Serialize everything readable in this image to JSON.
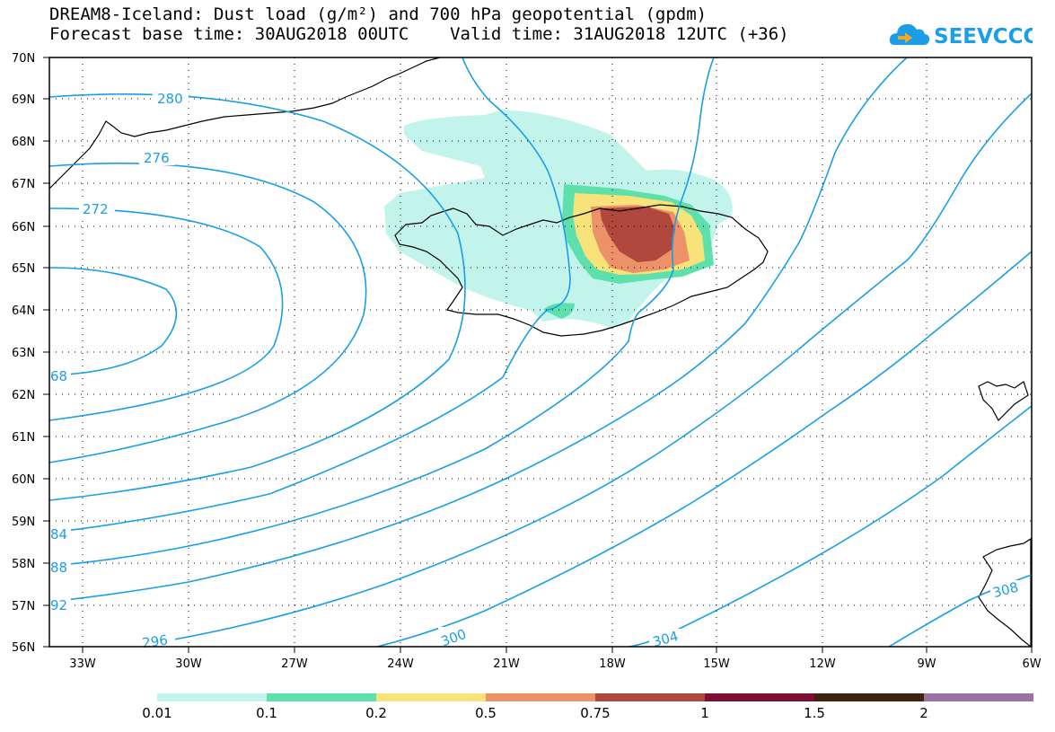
{
  "title": {
    "line1": "DREAM8-Iceland: Dust load (g/m²) and 700 hPa geopotential (gpdm)",
    "line2": "Forecast base time: 30AUG2018 00UTC    Valid time: 31AUG2018 12UTC (+36)"
  },
  "logo": {
    "text": "SEEVCCC",
    "icon": "cloud-logo-icon",
    "color": "#1a9ee8"
  },
  "map": {
    "lat_labels": [
      "70N",
      "69N",
      "68N",
      "67N",
      "66N",
      "65N",
      "64N",
      "63N",
      "62N",
      "61N",
      "60N",
      "59N",
      "58N",
      "57N",
      "56N"
    ],
    "lon_labels": [
      "33W",
      "30W",
      "27W",
      "24W",
      "21W",
      "18W",
      "15W",
      "12W",
      "9W",
      "6W"
    ],
    "contour_color": "#1a9ee8",
    "contour_labels": {
      "c280": "280",
      "c276": "276",
      "c272": "272",
      "c268": "68",
      "c284": "84",
      "c288": "88",
      "c292": "92",
      "c296": "296",
      "c300": "300",
      "c304": "304",
      "c308": "308"
    },
    "dust_levels_colors": [
      "#c3f4ec",
      "#5ee0ac",
      "#f7e37a",
      "#ec9168",
      "#b0483e",
      "#7e0e33",
      "#3d2410",
      "#9b72a4"
    ]
  },
  "colorbar": {
    "colors": [
      "#c3f4ec",
      "#5ee0ac",
      "#f7e37a",
      "#ec9168",
      "#b0483e",
      "#7e0e33",
      "#3d2410",
      "#9b72a4"
    ],
    "labels": [
      "0.01",
      "0.1",
      "0.2",
      "0.5",
      "0.75",
      "1",
      "1.5",
      "2"
    ]
  }
}
